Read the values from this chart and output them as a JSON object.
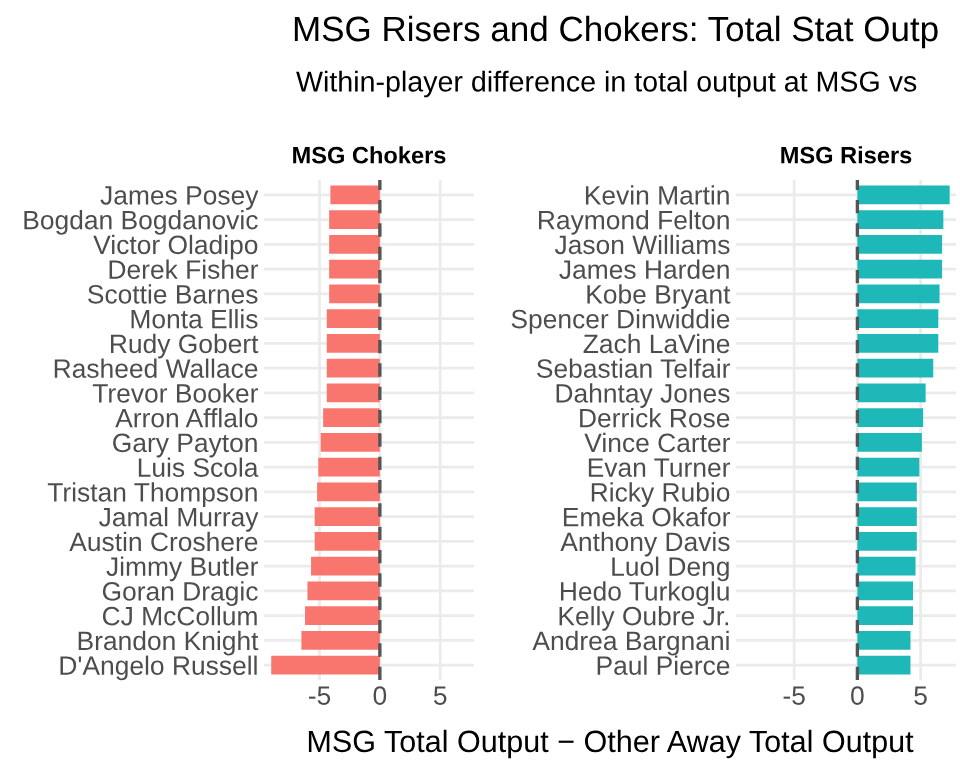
{
  "chart_data": [
    {
      "type": "bar",
      "orientation": "horizontal",
      "title": "MSG Risers and Chokers: Total Stat Outp",
      "subtitle": "Within-player difference in total output at MSG vs",
      "xlabel": "MSG Total Output − Other Away Total Output",
      "legend_title": "MSG Chokers",
      "categories": [
        "James Posey",
        "Bogdan Bogdanovic",
        "Victor Oladipo",
        "Derek Fisher",
        "Scottie Barnes",
        "Monta Ellis",
        "Rudy Gobert",
        "Rasheed Wallace",
        "Trevor Booker",
        "Arron Afflalo",
        "Gary Payton",
        "Luis Scola",
        "Tristan Thompson",
        "Jamal Murray",
        "Austin Croshere",
        "Jimmy Butler",
        "Goran Dragic",
        "CJ McCollum",
        "Brandon Knight",
        "D'Angelo Russell"
      ],
      "values": [
        -4.1,
        -4.2,
        -4.2,
        -4.2,
        -4.2,
        -4.4,
        -4.4,
        -4.4,
        -4.4,
        -4.7,
        -4.9,
        -5.1,
        -5.2,
        -5.4,
        -5.4,
        -5.7,
        -6.0,
        -6.2,
        -6.5,
        -9.0
      ],
      "color": "#f8766d",
      "xlim": [
        -9.6,
        7.8
      ],
      "xticks": [
        {
          "value": -5,
          "label": "-5"
        },
        0,
        5
      ],
      "grid": true,
      "ref_lines": [
        {
          "axis": "x",
          "value": 0,
          "line_style": "dashed",
          "color": "#555555"
        }
      ]
    },
    {
      "type": "bar",
      "orientation": "horizontal",
      "legend_title": "MSG Risers",
      "categories": [
        "Kevin Martin",
        "Raymond Felton",
        "Jason Williams",
        "James Harden",
        "Kobe Bryant",
        "Spencer Dinwiddie",
        "Zach LaVine",
        "Sebastian Telfair",
        "Dahntay Jones",
        "Derrick Rose",
        "Vince Carter",
        "Evan Turner",
        "Ricky Rubio",
        "Emeka Okafor",
        "Anthony Davis",
        "Luol Deng",
        "Hedo Turkoglu",
        "Kelly Oubre Jr.",
        "Andrea Bargnani",
        "Paul Pierce"
      ],
      "values": [
        7.3,
        6.8,
        6.7,
        6.7,
        6.5,
        6.4,
        6.4,
        6.0,
        5.4,
        5.2,
        5.1,
        4.9,
        4.7,
        4.7,
        4.7,
        4.6,
        4.4,
        4.4,
        4.2,
        4.2
      ],
      "color": "#1fb8b8",
      "xlim": [
        -9.6,
        7.8
      ],
      "xticks": [
        {
          "value": -5,
          "label": "-5"
        },
        0,
        5
      ],
      "grid": true,
      "ref_lines": [
        {
          "axis": "x",
          "value": 0,
          "line_style": "dashed",
          "color": "#555555"
        }
      ]
    }
  ]
}
